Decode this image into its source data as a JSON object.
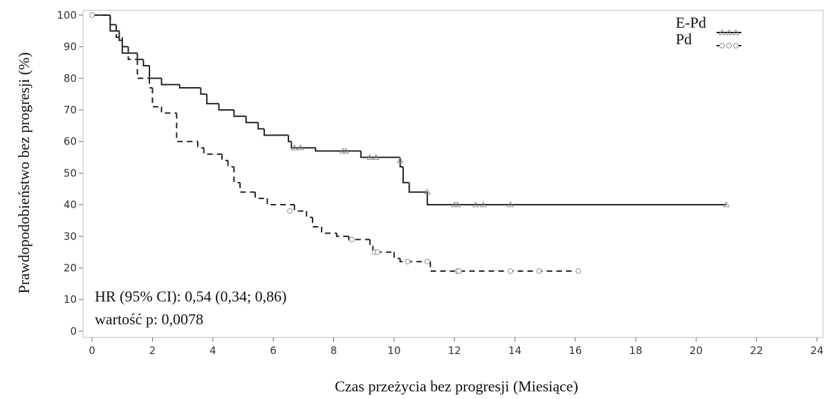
{
  "chart_data": {
    "type": "kaplan-meier",
    "x_label": "Czas przeżycia bez progresji (Miesiące)",
    "y_label": "Prawdopodobieństwo bez progresji (%)",
    "annotations": [
      "HR (95% CI): 0,54 (0,34; 0,86)",
      "wartość p: 0,0078"
    ],
    "xlim": [
      -0.3,
      24.2
    ],
    "ylim": [
      -2,
      101.5
    ],
    "xticks": [
      0,
      2,
      4,
      6,
      8,
      10,
      12,
      14,
      16,
      18,
      20,
      22,
      24
    ],
    "yticks": [
      0,
      10,
      20,
      30,
      40,
      50,
      60,
      70,
      80,
      90,
      100
    ],
    "legend": "top-right",
    "series": [
      {
        "name": "E-Pd",
        "color": "#222222",
        "dash": "solid",
        "marker": "triangle",
        "marker_color": "#8a8a8a",
        "x": [
          0,
          0.6,
          0.9,
          1.0,
          1.5,
          1.7,
          1.9,
          2.3,
          2.9,
          3.6,
          3.8,
          4.2,
          4.7,
          5.1,
          5.5,
          5.7,
          6.5,
          6.6,
          7.4,
          8.9,
          10.2,
          10.3,
          10.5,
          11.1,
          21.0
        ],
        "values": [
          100,
          95,
          92,
          88,
          86,
          84,
          80,
          78,
          77,
          75,
          72,
          70,
          68,
          66,
          64,
          62,
          60,
          58,
          57,
          55,
          52,
          47,
          44,
          40,
          40
        ],
        "censored_x": [
          6.7,
          6.9,
          8.3,
          8.4,
          9.2,
          9.4,
          10.2,
          11.1,
          12.0,
          12.1,
          12.7,
          12.95,
          13.85,
          21.0
        ],
        "censored_values": [
          58,
          58,
          57,
          57,
          55,
          55,
          54,
          44,
          40,
          40,
          40,
          40,
          40,
          40
        ]
      },
      {
        "name": "Pd",
        "color": "#222222",
        "dash": "dashed",
        "marker": "circle",
        "marker_color": "#8a8a8a",
        "x": [
          0,
          0.6,
          0.8,
          1.0,
          1.2,
          1.5,
          1.9,
          2.0,
          2.3,
          2.8,
          3.5,
          3.7,
          4.3,
          4.5,
          4.7,
          4.9,
          5.4,
          5.8,
          6.7,
          7.1,
          7.3,
          7.6,
          8.1,
          8.5,
          9.2,
          9.3,
          10.0,
          10.2,
          11.2,
          16.1
        ],
        "values": [
          100,
          97,
          93,
          90,
          86,
          80,
          77,
          71,
          69,
          60,
          58,
          56,
          54,
          52,
          47,
          44,
          42,
          40,
          38,
          36,
          33,
          31,
          30,
          29,
          27,
          25,
          23,
          22,
          19,
          19
        ],
        "censored_x": [
          0,
          6.55,
          8.6,
          9.35,
          9.45,
          10.45,
          11.1,
          12.1,
          12.15,
          13.85,
          14.8,
          16.1
        ],
        "censored_values": [
          100,
          38,
          29,
          25,
          25,
          22,
          22,
          19,
          19,
          19,
          19,
          19
        ]
      }
    ]
  }
}
